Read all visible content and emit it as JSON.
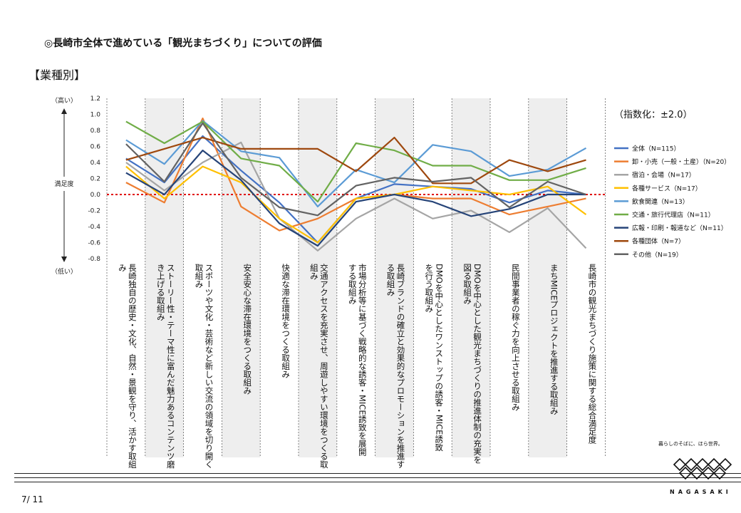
{
  "header": {
    "title": "◎長崎市全体で進めている「観光まちづくり」についての評価",
    "subtitle": "【業種別】"
  },
  "index_note": "（指数化：±2.0）",
  "axis_labels": {
    "high": "（高い）",
    "mid": "満足度",
    "low": "（低い）"
  },
  "footer": {
    "page": "7/ 11",
    "logo_tagline": "暮らしのそばに、ほら世界。",
    "logo_name": "NAGASAKI"
  },
  "chart_data": {
    "type": "line",
    "ylim": [
      -0.8,
      1.2
    ],
    "yticks": [
      "1.2",
      "1.0",
      "0.8",
      "0.6",
      "0.4",
      "0.2",
      "0.0",
      "-0.2",
      "-0.4",
      "-0.6",
      "-0.8"
    ],
    "categories": [
      "長崎独自の歴史・文化、自然・景観を守り、活かす取組み",
      "ストーリー性・テーマ性に富んだ魅力あるコンテンツ磨き上げる取組み",
      "スポーツや文化・芸術など新しい交流の領域を切り開く取組み",
      "安全安心な滞在環境をつくる取組み",
      "快適な滞在環境をつくる取組み",
      "交通アクセスを充実させ、周遊しやすい環境をつくる取組み",
      "市場分析等に基づく戦略的な誘客・MICE誘致を展開する取組み",
      "長崎ブランドの確立と効果的なプロモーションを推進する取組み",
      "DMOを中心としたワンストップの誘客・MICE誘致を行う取組み",
      "DMOを中心とした観光まちづくりの推進体制の充実を図る取組み",
      "民間事業者の稼ぐ力を向上させる取組み",
      "まちMICEプロジェクトを推進する取組み",
      "長崎市の観光まちづくり施策に関する総合満足度"
    ],
    "series": [
      {
        "name": "全体（N=115）",
        "color": "#4472c4",
        "values": [
          0.45,
          0.15,
          0.73,
          0.3,
          -0.1,
          -0.6,
          -0.05,
          0.13,
          0.1,
          0.07,
          -0.1,
          0.05,
          0.0
        ]
      },
      {
        "name": "卸・小売（一般・土産）（N=20）",
        "color": "#ed7d31",
        "values": [
          0.15,
          -0.1,
          0.95,
          -0.15,
          -0.45,
          -0.3,
          -0.05,
          0.0,
          -0.05,
          -0.05,
          -0.25,
          -0.15,
          -0.05
        ]
      },
      {
        "name": "宿泊・会場（N=17）",
        "color": "#a5a5a5",
        "values": [
          0.4,
          0.05,
          0.4,
          0.65,
          -0.3,
          -0.7,
          -0.3,
          -0.05,
          -0.3,
          -0.2,
          -0.47,
          -0.17,
          -0.67
        ]
      },
      {
        "name": "各種サービス（N=17）",
        "color": "#ffc000",
        "values": [
          0.35,
          -0.05,
          0.35,
          0.15,
          -0.3,
          -0.6,
          -0.05,
          0.0,
          0.1,
          0.05,
          0.0,
          0.1,
          -0.25
        ]
      },
      {
        "name": "飲食関連（N=13）",
        "color": "#5b9bd5",
        "values": [
          0.68,
          0.38,
          0.92,
          0.54,
          0.46,
          -0.15,
          0.31,
          0.15,
          0.62,
          0.54,
          0.23,
          0.31,
          0.58
        ]
      },
      {
        "name": "交通・旅行代理店（N=11）",
        "color": "#70ad47",
        "values": [
          0.91,
          0.64,
          0.91,
          0.45,
          0.36,
          -0.09,
          0.64,
          0.55,
          0.36,
          0.36,
          0.18,
          0.18,
          0.33
        ]
      },
      {
        "name": "広報・印刷・報道など（N=11）",
        "color": "#264478",
        "values": [
          0.27,
          0.0,
          0.55,
          0.18,
          -0.36,
          -0.64,
          -0.09,
          0.0,
          -0.09,
          -0.27,
          -0.18,
          0.0,
          0.0
        ]
      },
      {
        "name": "各種団体（N=7）",
        "color": "#9e480e",
        "values": [
          0.43,
          0.57,
          0.71,
          0.57,
          0.57,
          0.57,
          0.29,
          0.71,
          0.14,
          0.14,
          0.43,
          0.29,
          0.43
        ]
      },
      {
        "name": "その他（N=19）",
        "color": "#636363",
        "values": [
          0.63,
          0.16,
          0.89,
          0.21,
          -0.16,
          -0.26,
          0.11,
          0.21,
          0.16,
          0.21,
          -0.16,
          0.16,
          0.0
        ]
      }
    ]
  }
}
